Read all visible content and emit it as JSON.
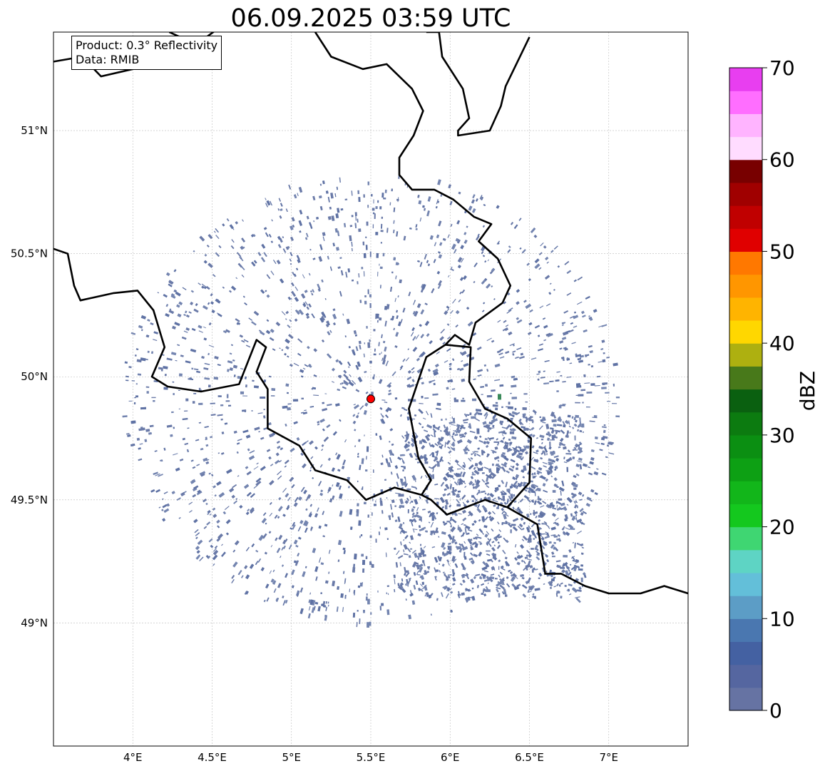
{
  "title": "06.09.2025 03:59 UTC",
  "info": {
    "product": "Product: 0.3° Reflectivity",
    "data": "Data: RMIB"
  },
  "map": {
    "lon_range": [
      3.5,
      7.5
    ],
    "lat_range": [
      48.5,
      51.4
    ],
    "lon_ticks": [
      {
        "value": 4.0,
        "label": "4°E"
      },
      {
        "value": 4.5,
        "label": "4.5°E"
      },
      {
        "value": 5.0,
        "label": "5°E"
      },
      {
        "value": 5.5,
        "label": "5.5°E"
      },
      {
        "value": 6.0,
        "label": "6°E"
      },
      {
        "value": 6.5,
        "label": "6.5°E"
      },
      {
        "value": 7.0,
        "label": "7°E"
      }
    ],
    "lat_ticks": [
      {
        "value": 49.0,
        "label": "49°N"
      },
      {
        "value": 49.5,
        "label": "49.5°N"
      },
      {
        "value": 50.0,
        "label": "50°N"
      },
      {
        "value": 50.5,
        "label": "50.5°N"
      },
      {
        "value": 51.0,
        "label": "51°N"
      }
    ],
    "radar_site": {
      "lon": 5.5,
      "lat": 49.91,
      "color": "#ff0000"
    },
    "grid": true,
    "borders": [
      [
        [
          3.5,
          51.28
        ],
        [
          3.68,
          51.3
        ],
        [
          3.8,
          51.22
        ],
        [
          4.0,
          51.25
        ],
        [
          4.15,
          51.3
        ],
        [
          4.23,
          51.38
        ]
      ],
      [
        [
          4.23,
          51.4
        ],
        [
          4.4,
          51.35
        ],
        [
          4.55,
          51.42
        ]
      ],
      [
        [
          5.15,
          51.4
        ],
        [
          5.25,
          51.3
        ],
        [
          5.45,
          51.25
        ],
        [
          5.6,
          51.27
        ],
        [
          5.76,
          51.17
        ],
        [
          5.83,
          51.08
        ],
        [
          5.77,
          50.98
        ],
        [
          5.68,
          50.89
        ],
        [
          5.68,
          50.82
        ],
        [
          5.76,
          50.76
        ],
        [
          5.9,
          50.76
        ],
        [
          6.02,
          50.72
        ],
        [
          6.15,
          50.65
        ],
        [
          6.26,
          50.62
        ],
        [
          6.18,
          50.55
        ],
        [
          6.3,
          50.48
        ],
        [
          6.38,
          50.37
        ],
        [
          6.33,
          50.3
        ],
        [
          6.16,
          50.22
        ],
        [
          6.12,
          50.13
        ],
        [
          6.03,
          50.17
        ],
        [
          5.97,
          50.13
        ],
        [
          5.85,
          50.08
        ],
        [
          5.74,
          49.87
        ],
        [
          5.8,
          49.67
        ],
        [
          5.88,
          49.58
        ],
        [
          5.82,
          49.52
        ],
        [
          5.65,
          49.55
        ],
        [
          5.47,
          49.5
        ],
        [
          5.35,
          49.58
        ],
        [
          5.15,
          49.62
        ],
        [
          5.05,
          49.72
        ],
        [
          4.85,
          49.79
        ],
        [
          4.85,
          49.95
        ],
        [
          4.78,
          50.02
        ],
        [
          4.84,
          50.12
        ],
        [
          4.78,
          50.15
        ],
        [
          4.67,
          49.97
        ],
        [
          4.43,
          49.94
        ],
        [
          4.22,
          49.96
        ],
        [
          4.12,
          50.0
        ],
        [
          4.2,
          50.12
        ],
        [
          4.13,
          50.27
        ],
        [
          4.03,
          50.35
        ],
        [
          3.88,
          50.34
        ],
        [
          3.67,
          50.31
        ],
        [
          3.63,
          50.37
        ],
        [
          3.59,
          50.5
        ],
        [
          3.5,
          50.52
        ]
      ],
      [
        [
          5.97,
          50.13
        ],
        [
          6.13,
          50.12
        ],
        [
          6.12,
          49.98
        ],
        [
          6.22,
          49.87
        ],
        [
          6.36,
          49.83
        ],
        [
          6.51,
          49.75
        ],
        [
          6.5,
          49.57
        ],
        [
          6.36,
          49.47
        ],
        [
          6.22,
          49.5
        ],
        [
          6.1,
          49.47
        ],
        [
          5.98,
          49.44
        ],
        [
          5.88,
          49.5
        ],
        [
          5.82,
          49.52
        ]
      ],
      [
        [
          6.36,
          49.47
        ],
        [
          6.55,
          49.4
        ],
        [
          6.6,
          49.2
        ],
        [
          6.7,
          49.2
        ],
        [
          6.85,
          49.15
        ],
        [
          7.0,
          49.12
        ],
        [
          7.2,
          49.12
        ],
        [
          7.35,
          49.15
        ],
        [
          7.5,
          49.12
        ]
      ],
      [
        [
          5.85,
          51.4
        ],
        [
          5.93,
          51.4
        ],
        [
          5.95,
          51.3
        ],
        [
          6.08,
          51.17
        ],
        [
          6.12,
          51.05
        ],
        [
          6.05,
          51.0
        ],
        [
          6.05,
          50.98
        ],
        [
          6.25,
          51.0
        ],
        [
          6.32,
          51.1
        ],
        [
          6.35,
          51.18
        ],
        [
          6.5,
          51.38
        ]
      ]
    ],
    "echo_seeds": [
      [
        5.1,
        50.3
      ],
      [
        5.3,
        50.2
      ],
      [
        5.6,
        50.3
      ],
      [
        5.8,
        50.4
      ],
      [
        6.1,
        50.4
      ],
      [
        6.3,
        50.3
      ],
      [
        5.0,
        50.1
      ],
      [
        4.9,
        49.9
      ],
      [
        5.2,
        49.7
      ],
      [
        5.5,
        49.6
      ],
      [
        5.8,
        49.7
      ],
      [
        6.1,
        49.8
      ],
      [
        6.3,
        49.6
      ],
      [
        6.5,
        49.5
      ],
      [
        6.4,
        49.3
      ],
      [
        6.1,
        49.4
      ],
      [
        5.8,
        49.3
      ],
      [
        5.4,
        49.3
      ],
      [
        5.1,
        49.4
      ],
      [
        4.9,
        49.5
      ],
      [
        6.6,
        49.8
      ],
      [
        6.7,
        49.6
      ],
      [
        6.0,
        49.6
      ],
      [
        5.7,
        50.1
      ],
      [
        6.2,
        50.1
      ]
    ]
  },
  "colorbar": {
    "label": "dBZ",
    "range": [
      0,
      70
    ],
    "ticks": [
      {
        "value": 0,
        "label": "0"
      },
      {
        "value": 10,
        "label": "10"
      },
      {
        "value": 20,
        "label": "20"
      },
      {
        "value": 30,
        "label": "30"
      },
      {
        "value": 40,
        "label": "40"
      },
      {
        "value": 50,
        "label": "50"
      },
      {
        "value": 60,
        "label": "60"
      },
      {
        "value": 70,
        "label": "70"
      }
    ],
    "colors": [
      "#6673a3",
      "#5566a0",
      "#4461a2",
      "#4a77b0",
      "#5c9dc6",
      "#63bfd9",
      "#5ed4c4",
      "#3fd672",
      "#14c81e",
      "#12b61a",
      "#0da014",
      "#0b8f12",
      "#0c7b10",
      "#0a6010",
      "#48791a",
      "#aeb010",
      "#ffd700",
      "#ffb400",
      "#ff9600",
      "#ff7800",
      "#e00000",
      "#c00000",
      "#a00000",
      "#780000",
      "#ffdcff",
      "#ffb4ff",
      "#ff6eff",
      "#e83ef0"
    ]
  }
}
